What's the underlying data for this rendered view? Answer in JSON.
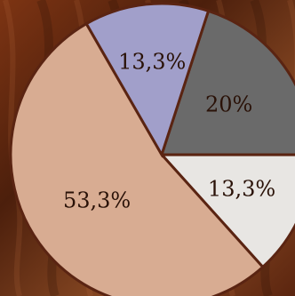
{
  "chart_data": {
    "type": "pie",
    "title": "",
    "slices": [
      {
        "label": "20%",
        "value": 20,
        "color": "#6a6a6a"
      },
      {
        "label": "13,3%",
        "value": 13.3,
        "color": "#e8e6e3"
      },
      {
        "label": "53,3%",
        "value": 53.3,
        "color": "#d8ac92"
      },
      {
        "label": "13,3%",
        "value": 13.3,
        "color": "#a19fca"
      }
    ],
    "slice_border_color": "#5a2412",
    "background_color": "#5f2a12"
  }
}
